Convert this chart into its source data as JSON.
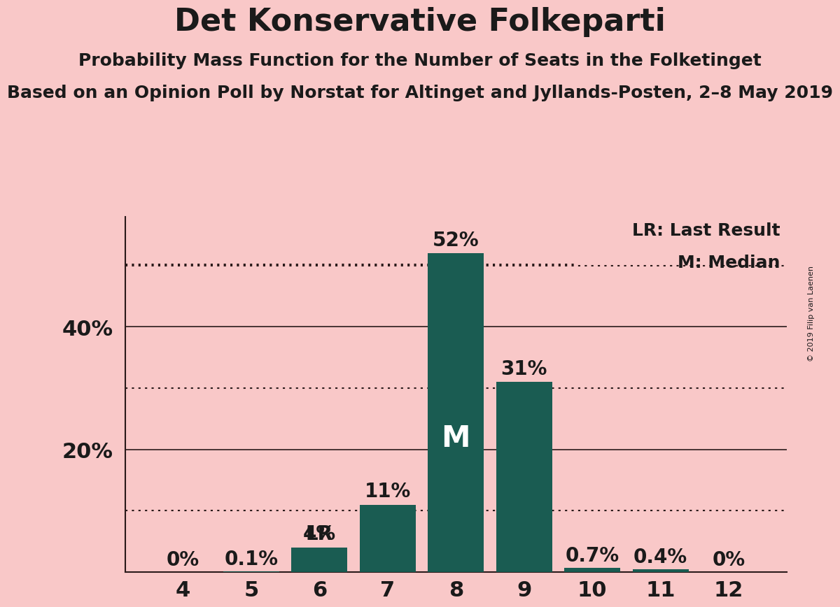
{
  "title": "Det Konservative Folkeparti",
  "subtitle1": "Probability Mass Function for the Number of Seats in the Folketinget",
  "subtitle2": "Based on an Opinion Poll by Norstat for Altinget and Jyllands-Posten, 2–8 May 2019",
  "watermark": "© 2019 Filip van Laenen",
  "categories": [
    4,
    5,
    6,
    7,
    8,
    9,
    10,
    11,
    12
  ],
  "values": [
    0.0,
    0.1,
    4.0,
    11.0,
    52.0,
    31.0,
    0.7,
    0.4,
    0.0
  ],
  "bar_color": "#1a5c52",
  "background_color": "#f9c8c8",
  "text_color": "#1a1a1a",
  "on_bar_color": "#ffffff",
  "labels": [
    "0%",
    "0.1%",
    "4%",
    "11%",
    "52%",
    "31%",
    "0.7%",
    "0.4%",
    "0%"
  ],
  "lr_index": 2,
  "median_index": 4,
  "lr_label": "LR",
  "median_label": "M",
  "legend_lr": "LR: Last Result",
  "legend_m": "M: Median",
  "solid_line_y": [
    20.0,
    40.0
  ],
  "dotted_line_y": [
    10.0,
    30.0,
    50.0
  ],
  "ylim": [
    0,
    58
  ],
  "ytick_positions": [
    20.0,
    40.0
  ],
  "ytick_labels": [
    "20%",
    "40%"
  ],
  "title_fontsize": 32,
  "subtitle_fontsize": 18,
  "label_fontsize": 20,
  "tick_fontsize": 22,
  "legend_fontsize": 18,
  "watermark_fontsize": 8,
  "bar_width": 0.82
}
